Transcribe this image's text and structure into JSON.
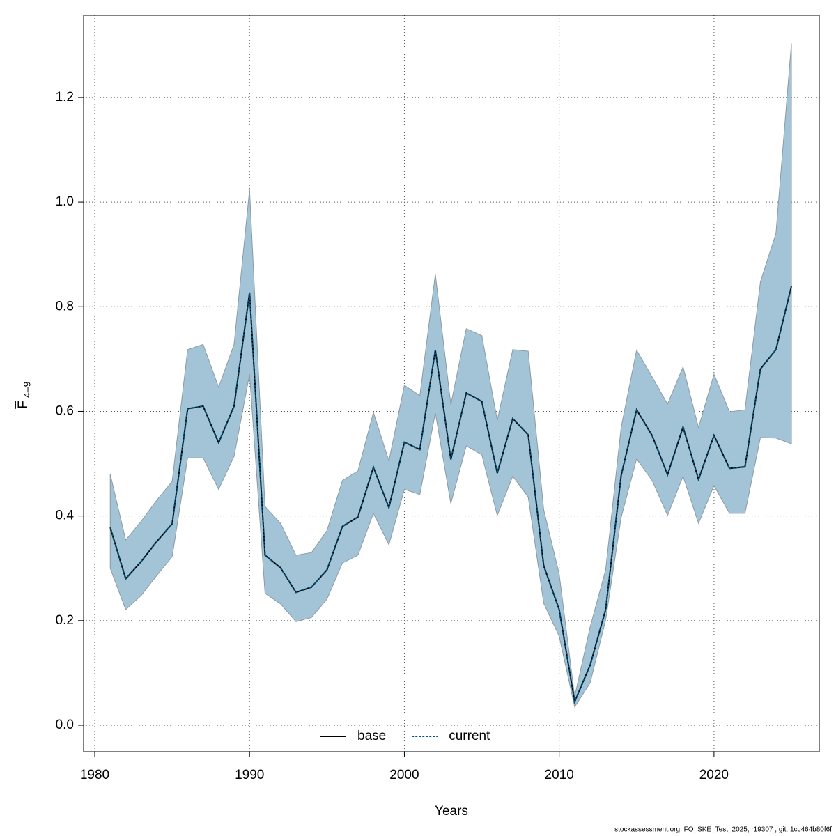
{
  "chart_data": {
    "type": "line",
    "xlabel": "Years",
    "ylabel": {
      "main": "F",
      "sub": "4–9"
    },
    "footer": "stockassessment.org, FO_SKE_Test_2025, r19307 , git: 1cc464b80f6f",
    "x": [
      1981,
      1982,
      1983,
      1984,
      1985,
      1986,
      1987,
      1988,
      1989,
      1990,
      1991,
      1992,
      1993,
      1994,
      1995,
      1996,
      1997,
      1998,
      1999,
      2000,
      2001,
      2002,
      2003,
      2004,
      2005,
      2006,
      2007,
      2008,
      2009,
      2010,
      2011,
      2012,
      2013,
      2014,
      2015,
      2016,
      2017,
      2018,
      2019,
      2020,
      2021,
      2022,
      2023,
      2024,
      2025
    ],
    "series": [
      {
        "name": "base",
        "color": "#000000",
        "dashed": false,
        "values": [
          0.378,
          0.28,
          0.313,
          0.351,
          0.385,
          0.605,
          0.61,
          0.54,
          0.61,
          0.827,
          0.325,
          0.301,
          0.254,
          0.264,
          0.297,
          0.38,
          0.398,
          0.493,
          0.416,
          0.541,
          0.527,
          0.717,
          0.508,
          0.635,
          0.619,
          0.482,
          0.586,
          0.555,
          0.305,
          0.221,
          0.045,
          0.115,
          0.221,
          0.477,
          0.603,
          0.554,
          0.479,
          0.57,
          0.47,
          0.554,
          0.491,
          0.494,
          0.681,
          0.718,
          0.839
        ]
      },
      {
        "name": "current",
        "color": "#00527a",
        "dashed": true,
        "values": [
          0.378,
          0.28,
          0.313,
          0.351,
          0.385,
          0.605,
          0.61,
          0.54,
          0.61,
          0.827,
          0.325,
          0.301,
          0.254,
          0.264,
          0.297,
          0.38,
          0.398,
          0.493,
          0.416,
          0.541,
          0.527,
          0.717,
          0.508,
          0.635,
          0.619,
          0.482,
          0.586,
          0.555,
          0.305,
          0.221,
          0.045,
          0.115,
          0.221,
          0.477,
          0.603,
          0.554,
          0.479,
          0.57,
          0.47,
          0.554,
          0.491,
          0.494,
          0.681,
          0.718,
          0.839
        ]
      }
    ],
    "band": {
      "color": "#a3c4d6",
      "upper": [
        0.48,
        0.354,
        0.39,
        0.43,
        0.466,
        0.718,
        0.728,
        0.646,
        0.728,
        1.024,
        0.418,
        0.386,
        0.325,
        0.33,
        0.372,
        0.468,
        0.486,
        0.598,
        0.505,
        0.65,
        0.63,
        0.862,
        0.613,
        0.758,
        0.745,
        0.583,
        0.718,
        0.715,
        0.412,
        0.289,
        0.055,
        0.188,
        0.297,
        0.569,
        0.717,
        0.666,
        0.614,
        0.685,
        0.569,
        0.671,
        0.599,
        0.603,
        0.848,
        0.94,
        1.303
      ],
      "lower": [
        0.3,
        0.221,
        0.248,
        0.286,
        0.322,
        0.511,
        0.511,
        0.451,
        0.514,
        0.671,
        0.252,
        0.232,
        0.198,
        0.206,
        0.241,
        0.31,
        0.325,
        0.405,
        0.345,
        0.451,
        0.441,
        0.597,
        0.424,
        0.534,
        0.517,
        0.401,
        0.476,
        0.436,
        0.233,
        0.17,
        0.035,
        0.081,
        0.201,
        0.397,
        0.509,
        0.468,
        0.401,
        0.476,
        0.386,
        0.458,
        0.405,
        0.405,
        0.55,
        0.549,
        0.538
      ]
    },
    "xlim": [
      1979.28,
      2026.8
    ],
    "ylim": [
      -0.0506,
      1.357
    ],
    "xticks": [
      1980,
      1990,
      2000,
      2010,
      2020
    ],
    "yticks": [
      {
        "value": 0,
        "label": "0.0"
      },
      0.2,
      0.4,
      0.6,
      0.8,
      {
        "value": 1,
        "label": "1.0"
      },
      1.2
    ],
    "grid": true,
    "legend": "bottom"
  }
}
